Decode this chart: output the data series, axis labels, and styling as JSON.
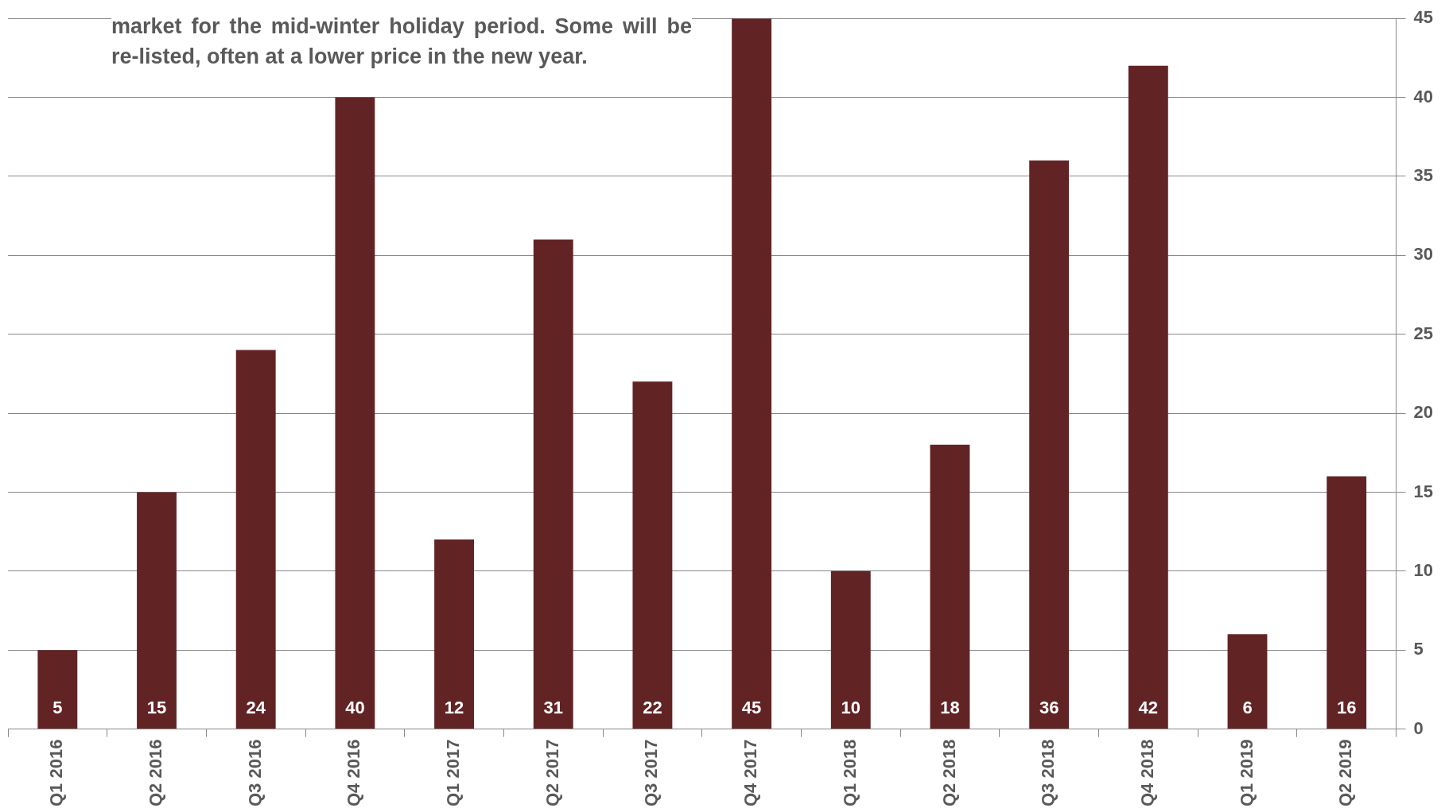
{
  "chart_data": {
    "type": "bar",
    "categories": [
      "Q1 2016",
      "Q2 2016",
      "Q3 2016",
      "Q4 2016",
      "Q1 2017",
      "Q2 2017",
      "Q3 2017",
      "Q4 2017",
      "Q1 2018",
      "Q2 2018",
      "Q3 2018",
      "Q4 2018",
      "Q1 2019",
      "Q2 2019"
    ],
    "values": [
      5,
      15,
      24,
      40,
      12,
      31,
      22,
      45,
      10,
      18,
      36,
      42,
      6,
      16
    ],
    "color": "#622325",
    "ylim": [
      0,
      45
    ],
    "yticks": [
      0,
      5,
      10,
      15,
      20,
      25,
      30,
      35,
      40,
      45
    ],
    "grid": "y",
    "legend": false,
    "data_labels": true,
    "annotations": [
      "market for the mid-winter holiday period. Some will be re-listed, often at a lower price in the new year."
    ]
  }
}
